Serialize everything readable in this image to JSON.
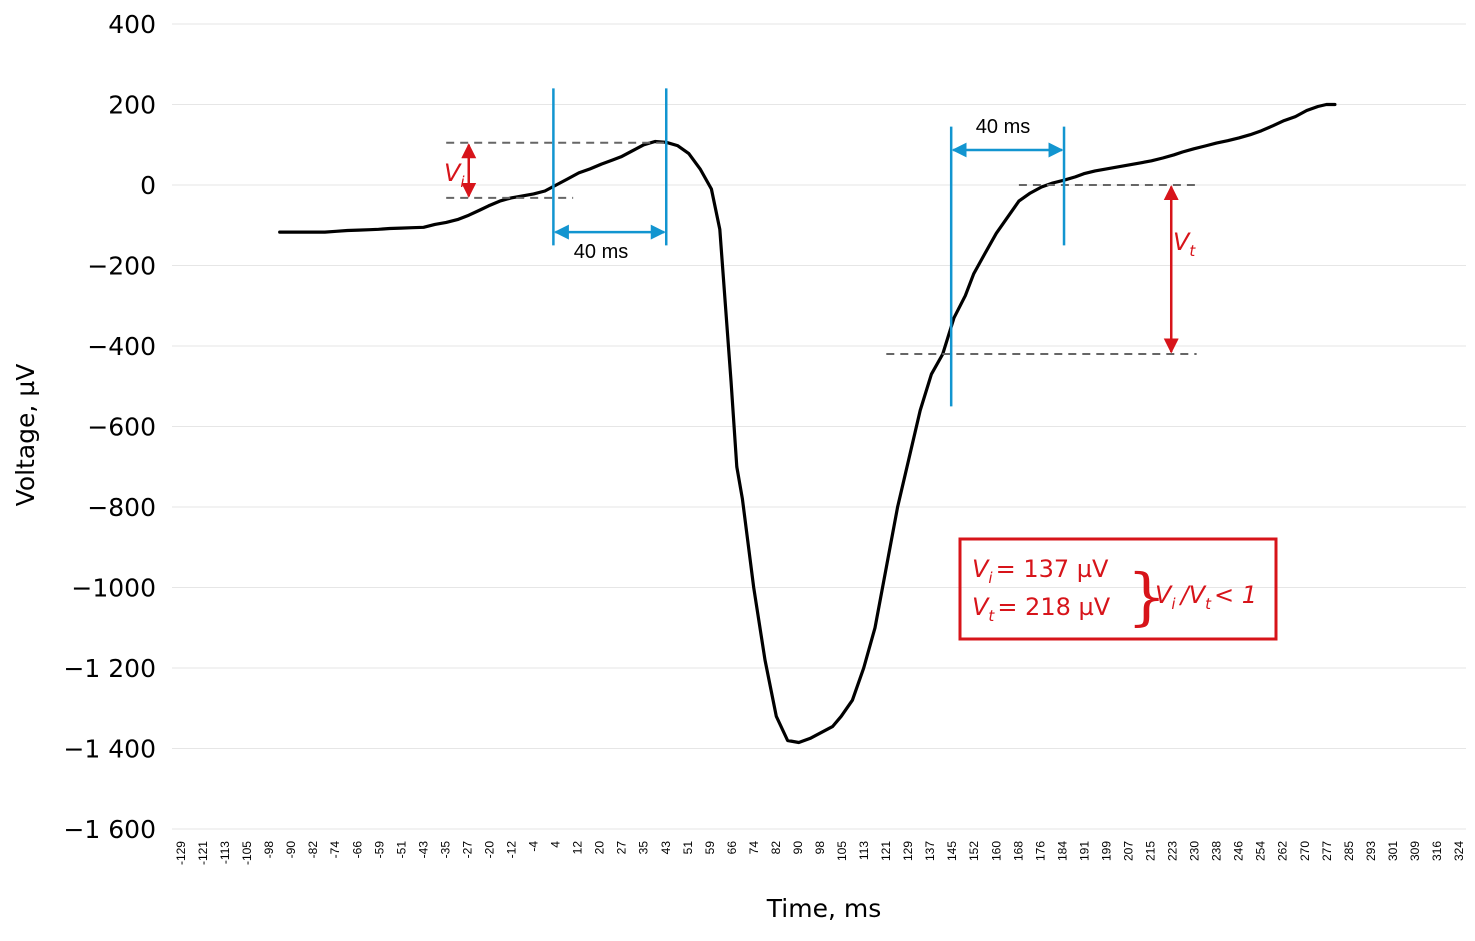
{
  "chart_data": {
    "type": "line",
    "xlabel": "Time, ms",
    "ylabel": "Voltage, µV",
    "ylim": [
      -1600,
      400
    ],
    "yticks": [
      400,
      200,
      0,
      -200,
      -400,
      -600,
      -800,
      -1000,
      -1200,
      -1400,
      -1600
    ],
    "ytick_labels": [
      "400",
      "200",
      "0",
      "−200",
      "−400",
      "−600",
      "−800",
      "−1000",
      "−1 200",
      "−1 400",
      "−1 600"
    ],
    "x_category_labels": [
      "-129",
      "-121",
      "-113",
      "-105",
      "-98",
      "-90",
      "-82",
      "-74",
      "-66",
      "-59",
      "-51",
      "-43",
      "-35",
      "-27",
      "-20",
      "-12",
      "-4",
      "4",
      "12",
      "20",
      "27",
      "35",
      "43",
      "51",
      "59",
      "66",
      "74",
      "82",
      "90",
      "98",
      "105",
      "113",
      "121",
      "129",
      "137",
      "145",
      "152",
      "160",
      "168",
      "176",
      "184",
      "191",
      "199",
      "207",
      "215",
      "223",
      "230",
      "238",
      "246",
      "254",
      "262",
      "270",
      "277",
      "285",
      "293",
      "301",
      "309",
      "316",
      "324"
    ],
    "grid": "horizontal",
    "series_color": "#000000",
    "series": [
      {
        "x": [
          -94,
          -86,
          -78,
          -74,
          -70,
          -66,
          -62,
          -59,
          -55,
          -51,
          -47,
          -43,
          -39,
          -35,
          -31,
          -27,
          -23,
          -20,
          -16,
          -12,
          -8,
          -4,
          0,
          4,
          8,
          12,
          16,
          20,
          24,
          27,
          31,
          35,
          39,
          43,
          47,
          51,
          55,
          59,
          62,
          66,
          68,
          70,
          74,
          78,
          82,
          86,
          90,
          94,
          98,
          102,
          105,
          109,
          113,
          117,
          121,
          125,
          129,
          133,
          137,
          141,
          145,
          149,
          152,
          156,
          160,
          164,
          168,
          172,
          176,
          180,
          184,
          188,
          191,
          195,
          199,
          203,
          207,
          211,
          215,
          219,
          223,
          226,
          230,
          234,
          238,
          242,
          246,
          250,
          254,
          258,
          262,
          266,
          270,
          274,
          277,
          280
        ],
        "y": [
          -117,
          -117,
          -117,
          -115,
          -113,
          -112,
          -111,
          -110,
          -108,
          -107,
          -106,
          -105,
          -98,
          -93,
          -86,
          -75,
          -62,
          -52,
          -40,
          -32,
          -27,
          -22,
          -15,
          0,
          15,
          30,
          40,
          52,
          62,
          70,
          85,
          100,
          108,
          106,
          98,
          78,
          40,
          -10,
          -110,
          -490,
          -700,
          -780,
          -1000,
          -1180,
          -1320,
          -1380,
          -1385,
          -1375,
          -1360,
          -1345,
          -1320,
          -1280,
          -1200,
          -1100,
          -950,
          -800,
          -680,
          -560,
          -470,
          -420,
          -330,
          -275,
          -220,
          -170,
          -120,
          -80,
          -40,
          -20,
          -5,
          5,
          12,
          20,
          28,
          35,
          40,
          45,
          50,
          55,
          60,
          67,
          75,
          82,
          90,
          97,
          104,
          110,
          117,
          125,
          135,
          147,
          160,
          170,
          185,
          195,
          200,
          200
        ]
      }
    ],
    "annotations": {
      "left_window_label": "40 ms",
      "right_window_label": "40 ms",
      "vi_label": "V",
      "vi_sub": "i",
      "vt_label": "V",
      "vt_sub": "t",
      "box_line1_var": "V",
      "box_line1_sub": "i",
      "box_line1_value": "= 137 µV",
      "box_line2_var": "V",
      "box_line2_sub": "t",
      "box_line2_value": "= 218 µV",
      "box_brace": "}",
      "box_ratio_var1": "V",
      "box_ratio_sub1": "i",
      "box_ratio_slash": "/",
      "box_ratio_var2": "V",
      "box_ratio_sub2": "t",
      "box_ratio_rest": "< 1",
      "accent_blue": "#1295d0",
      "accent_red": "#d7141a",
      "dashed_color": "#666666"
    }
  }
}
